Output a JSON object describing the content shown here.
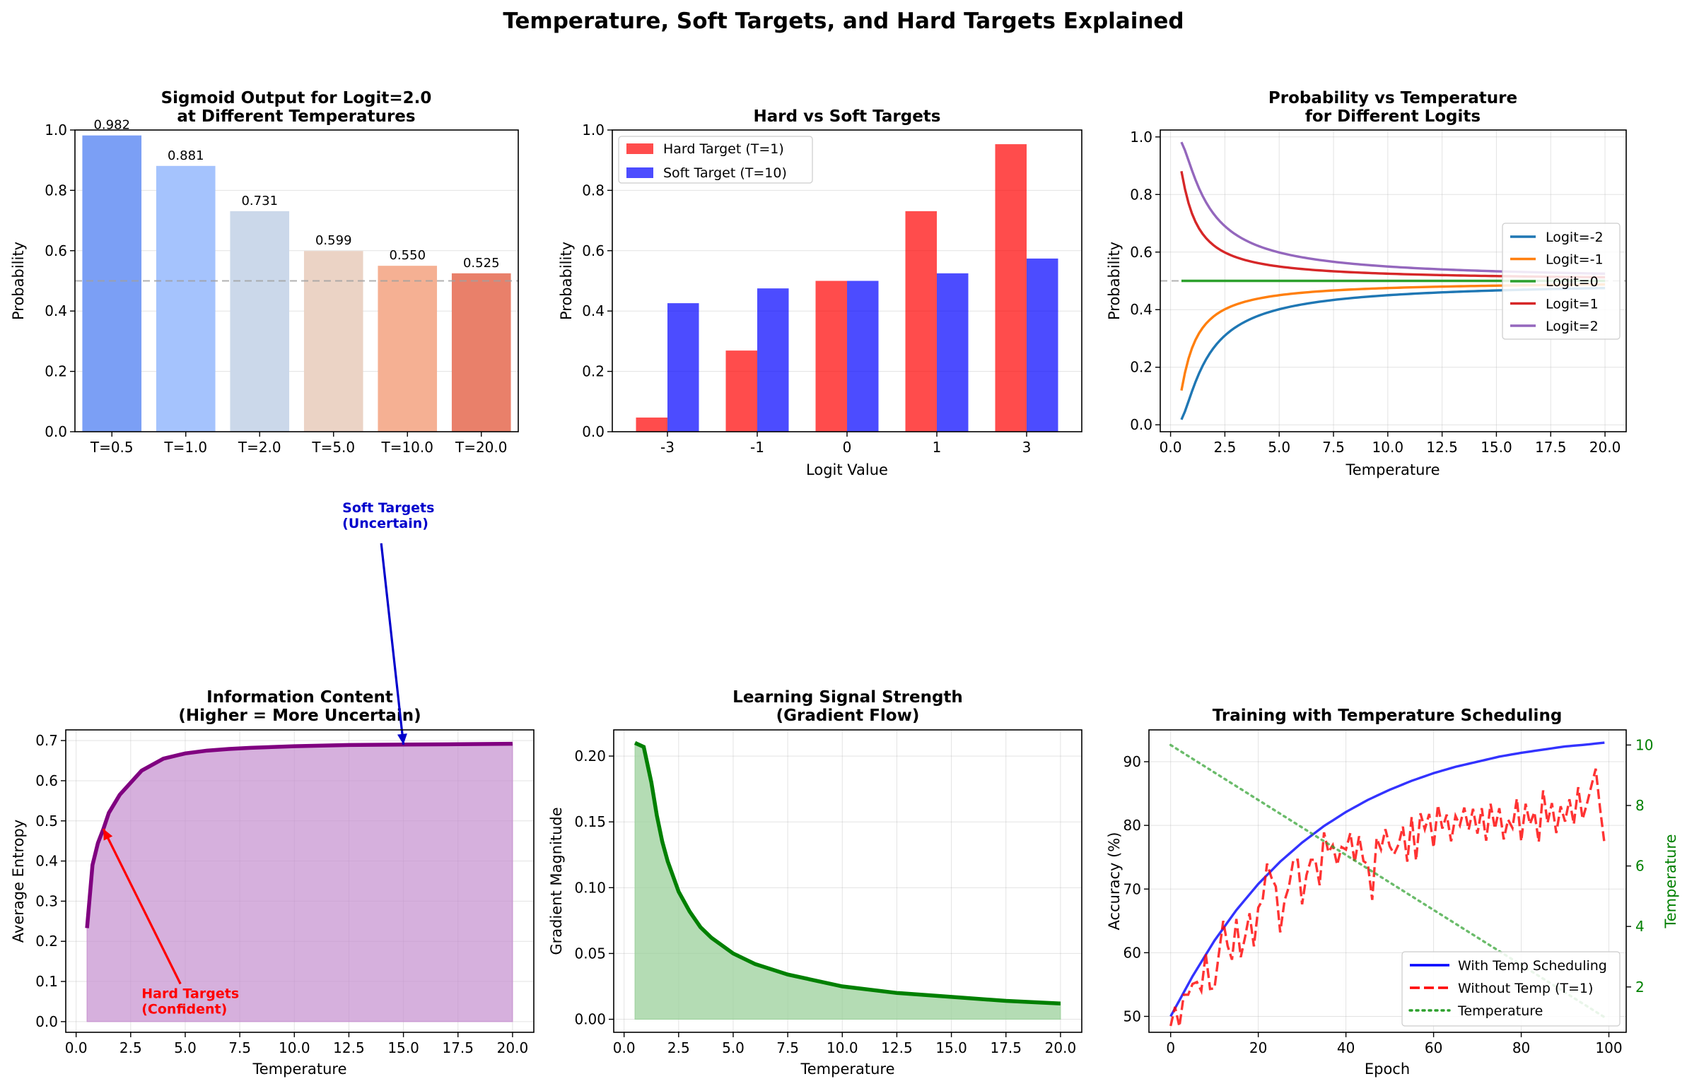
{
  "suptitle": "Temperature, Soft Targets, and Hard Targets Explained",
  "colors": {
    "grid": "#b0b0b0",
    "ref_line": "#a0a0a0",
    "hard": "#ff0000",
    "soft": "#0000ff",
    "entropy_line": "#800080",
    "entropy_fill": "#c58fce",
    "gradient_line": "#008000",
    "gradient_fill": "#9bd09b",
    "temp_axis": "#008000"
  },
  "chart_data": [
    {
      "type": "bar",
      "title": "Sigmoid Output for Logit=2.0\nat Different Temperatures",
      "xlabel": "",
      "ylabel": "Probability",
      "ylim": [
        0,
        1.0
      ],
      "yticks": [
        0.0,
        0.2,
        0.4,
        0.6,
        0.8,
        1.0
      ],
      "ytick_labels": [
        "0.0",
        "0.2",
        "0.4",
        "0.6",
        "0.8",
        "1.0"
      ],
      "categories": [
        "T=0.5",
        "T=1.0",
        "T=2.0",
        "T=5.0",
        "T=10.0",
        "T=20.0"
      ],
      "values": [
        0.982,
        0.881,
        0.731,
        0.599,
        0.55,
        0.525
      ],
      "value_labels": [
        "0.982",
        "0.881",
        "0.731",
        "0.599",
        "0.550",
        "0.525"
      ],
      "bar_colors": [
        "#7b9ff5",
        "#a5c3fd",
        "#cbd8ea",
        "#ebd3c5",
        "#f5b093",
        "#e9806a"
      ],
      "reference_line": 0.5,
      "grid": "y"
    },
    {
      "type": "bar",
      "title": "Hard vs Soft Targets",
      "xlabel": "Logit Value",
      "ylabel": "Probability",
      "ylim": [
        0,
        1.0
      ],
      "yticks": [
        0.0,
        0.2,
        0.4,
        0.6,
        0.8,
        1.0
      ],
      "ytick_labels": [
        "0.0",
        "0.2",
        "0.4",
        "0.6",
        "0.8",
        "1.0"
      ],
      "categories": [
        "-3",
        "-1",
        "0",
        "1",
        "3"
      ],
      "series": [
        {
          "name": "Hard Target (T=1)",
          "values": [
            0.047,
            0.269,
            0.5,
            0.731,
            0.953
          ],
          "color": "#ff0000"
        },
        {
          "name": "Soft Target (T=10)",
          "values": [
            0.426,
            0.475,
            0.5,
            0.525,
            0.574
          ],
          "color": "#0000ff"
        }
      ],
      "legend": "top-left",
      "grid": "y"
    },
    {
      "type": "line",
      "title": "Probability vs Temperature\nfor Different Logits",
      "xlabel": "Temperature",
      "ylabel": "Probability",
      "xlim": [
        0.5,
        20
      ],
      "ylim": [
        0.0,
        1.0
      ],
      "xticks": [
        0.0,
        2.5,
        5.0,
        7.5,
        10.0,
        12.5,
        15.0,
        17.5,
        20.0
      ],
      "xtick_labels": [
        "0.0",
        "2.5",
        "5.0",
        "7.5",
        "10.0",
        "12.5",
        "15.0",
        "17.5",
        "20.0"
      ],
      "yticks": [
        0.0,
        0.2,
        0.4,
        0.6,
        0.8,
        1.0
      ],
      "ytick_labels": [
        "0.0",
        "0.2",
        "0.4",
        "0.6",
        "0.8",
        "1.0"
      ],
      "function": "sigmoid(logit / T)",
      "series": [
        {
          "name": "Logit=-2",
          "logit": -2,
          "color": "#1f77b4"
        },
        {
          "name": "Logit=-1",
          "logit": -1,
          "color": "#ff7f0e"
        },
        {
          "name": "Logit=0",
          "logit": 0,
          "color": "#2ca02c"
        },
        {
          "name": "Logit=1",
          "logit": 1,
          "color": "#d62728"
        },
        {
          "name": "Logit=2",
          "logit": 2,
          "color": "#9467bd"
        }
      ],
      "reference_line": 0.5,
      "legend": "center-right",
      "grid": true
    },
    {
      "type": "area",
      "title": "Information Content\n(Higher = More Uncertain)",
      "xlabel": "Temperature",
      "ylabel": "Average Entropy",
      "xlim": [
        0.5,
        20
      ],
      "ylim": [
        0.0,
        0.7
      ],
      "xticks": [
        0.0,
        2.5,
        5.0,
        7.5,
        10.0,
        12.5,
        15.0,
        17.5,
        20.0
      ],
      "xtick_labels": [
        "0.0",
        "2.5",
        "5.0",
        "7.5",
        "10.0",
        "12.5",
        "15.0",
        "17.5",
        "20.0"
      ],
      "yticks": [
        0.0,
        0.1,
        0.2,
        0.3,
        0.4,
        0.5,
        0.6,
        0.7
      ],
      "ytick_labels": [
        "0.0",
        "0.1",
        "0.2",
        "0.3",
        "0.4",
        "0.5",
        "0.6",
        "0.7"
      ],
      "series": [
        {
          "x": [
            0.5,
            0.75,
            1.0,
            1.25,
            1.5,
            2.0,
            2.5,
            3.0,
            4.0,
            5.0,
            6.0,
            7.0,
            8.0,
            10.0,
            12.5,
            15.0,
            17.5,
            20.0
          ],
          "y": [
            0.233,
            0.39,
            0.445,
            0.48,
            0.52,
            0.565,
            0.595,
            0.625,
            0.655,
            0.668,
            0.675,
            0.679,
            0.682,
            0.686,
            0.689,
            0.69,
            0.691,
            0.692
          ]
        }
      ],
      "annotations": [
        {
          "text": "Hard Targets\n(Confident)",
          "point": [
            1.25,
            0.48
          ],
          "text_at": [
            3.0,
            0.02
          ],
          "color": "#ff0000"
        },
        {
          "text": "Soft Targets\n(Uncertain)",
          "point": [
            15.0,
            0.69
          ],
          "text_at": [
            12.2,
            1.23
          ],
          "color": "#0000cc"
        }
      ],
      "grid": true
    },
    {
      "type": "area",
      "title": "Learning Signal Strength\n(Gradient Flow)",
      "xlabel": "Temperature",
      "ylabel": "Gradient Magnitude",
      "xlim": [
        0.5,
        20
      ],
      "ylim": [
        0.0,
        0.21
      ],
      "xticks": [
        0.0,
        2.5,
        5.0,
        7.5,
        10.0,
        12.5,
        15.0,
        17.5,
        20.0
      ],
      "xtick_labels": [
        "0.0",
        "2.5",
        "5.0",
        "7.5",
        "10.0",
        "12.5",
        "15.0",
        "17.5",
        "20.0"
      ],
      "yticks": [
        0.0,
        0.05,
        0.1,
        0.15,
        0.2
      ],
      "ytick_labels": [
        "0.00",
        "0.05",
        "0.10",
        "0.15",
        "0.20"
      ],
      "series": [
        {
          "x": [
            0.5,
            0.9,
            1.25,
            1.5,
            1.75,
            2.0,
            2.5,
            3.0,
            3.5,
            4.0,
            5.0,
            6.0,
            7.5,
            10.0,
            12.5,
            15.0,
            17.5,
            20.0
          ],
          "y": [
            0.21,
            0.207,
            0.18,
            0.155,
            0.135,
            0.12,
            0.097,
            0.082,
            0.07,
            0.062,
            0.05,
            0.042,
            0.034,
            0.025,
            0.02,
            0.017,
            0.014,
            0.012
          ]
        }
      ],
      "grid": true
    },
    {
      "type": "line",
      "title": "Training with Temperature Scheduling",
      "xlabel": "Epoch",
      "ylabel": "Accuracy (%)",
      "ylabel_right": "Temperature",
      "xlim": [
        0,
        99
      ],
      "ylim": [
        47.5,
        95
      ],
      "xticks": [
        0,
        20,
        40,
        60,
        80,
        100
      ],
      "xtick_labels": [
        "0",
        "20",
        "40",
        "60",
        "80",
        "100"
      ],
      "yticks": [
        50,
        60,
        70,
        80,
        90
      ],
      "ytick_labels": [
        "50",
        "60",
        "70",
        "80",
        "90"
      ],
      "ylim_right": [
        0.5,
        10.5
      ],
      "yticks_right": [
        2,
        4,
        6,
        8,
        10
      ],
      "ytick_labels_right": [
        "2",
        "4",
        "6",
        "8",
        "10"
      ],
      "series": [
        {
          "name": "With Temp Scheduling",
          "color": "#0000ff",
          "style": "solid",
          "x": [
            0,
            5,
            10,
            15,
            20,
            25,
            30,
            35,
            40,
            45,
            50,
            55,
            60,
            65,
            70,
            75,
            80,
            85,
            90,
            95,
            99
          ],
          "y": [
            50.0,
            56.3,
            61.9,
            66.7,
            70.8,
            74.3,
            77.3,
            79.9,
            82.1,
            84.0,
            85.6,
            87.0,
            88.2,
            89.2,
            90.0,
            90.8,
            91.4,
            91.9,
            92.4,
            92.7,
            93.0
          ]
        },
        {
          "name": "Without Temp (T=1)",
          "color": "#ff0000",
          "style": "dashed",
          "x": [
            0,
            1,
            2,
            3,
            4,
            5,
            6,
            7,
            8,
            9,
            10,
            11,
            12,
            13,
            14,
            15,
            16,
            17,
            18,
            19,
            20,
            21,
            22,
            23,
            24,
            25,
            26,
            27,
            28,
            29,
            30,
            31,
            32,
            33,
            34,
            35,
            36,
            37,
            38,
            39,
            40,
            41,
            42,
            43,
            44,
            45,
            46,
            47,
            48,
            49,
            50,
            51,
            52,
            53,
            54,
            55,
            56,
            57,
            58,
            59,
            60,
            61,
            62,
            63,
            64,
            65,
            66,
            67,
            68,
            69,
            70,
            71,
            72,
            73,
            74,
            75,
            76,
            77,
            78,
            79,
            80,
            81,
            82,
            83,
            84,
            85,
            86,
            87,
            88,
            89,
            90,
            91,
            92,
            93,
            94,
            95,
            96,
            97,
            98,
            99
          ],
          "y": [
            48.5,
            51.5,
            48.4,
            53.4,
            53.4,
            55.1,
            55.4,
            54.0,
            59.9,
            54.3,
            54.4,
            59.8,
            65.0,
            61.1,
            58.9,
            65.3,
            59.3,
            62.5,
            66.2,
            61.0,
            67.1,
            68.3,
            74.0,
            71.8,
            70.4,
            63.2,
            68.2,
            70.4,
            74.6,
            74.6,
            67.6,
            72.2,
            74.6,
            74.6,
            70.6,
            78.9,
            75.8,
            76.9,
            73.8,
            76.6,
            76.2,
            78.8,
            74.2,
            78.3,
            74.4,
            73.9,
            68.3,
            78.0,
            76.2,
            79.4,
            76.7,
            75.5,
            77.0,
            79.8,
            74.3,
            81.3,
            74.5,
            81.9,
            79.4,
            81.8,
            76.5,
            83.2,
            79.5,
            81.7,
            77.5,
            81.5,
            80.0,
            82.8,
            79.3,
            82.6,
            78.7,
            82.7,
            77.6,
            83.4,
            79.5,
            82.7,
            77.8,
            80.9,
            79.6,
            84.2,
            77.5,
            83.4,
            80.2,
            82.1,
            77.4,
            85.5,
            80.4,
            83.5,
            78.8,
            83.0,
            80.6,
            84.1,
            80.2,
            86.0,
            81.0,
            83.4,
            86.2,
            88.9,
            82.6,
            77.1
          ]
        },
        {
          "name": "Temperature",
          "color": "#2ca02c",
          "style": "dotted",
          "axis": "right",
          "x": [
            0,
            99
          ],
          "y": [
            10,
            1
          ]
        }
      ],
      "legend": "bottom-right",
      "grid": true
    }
  ]
}
